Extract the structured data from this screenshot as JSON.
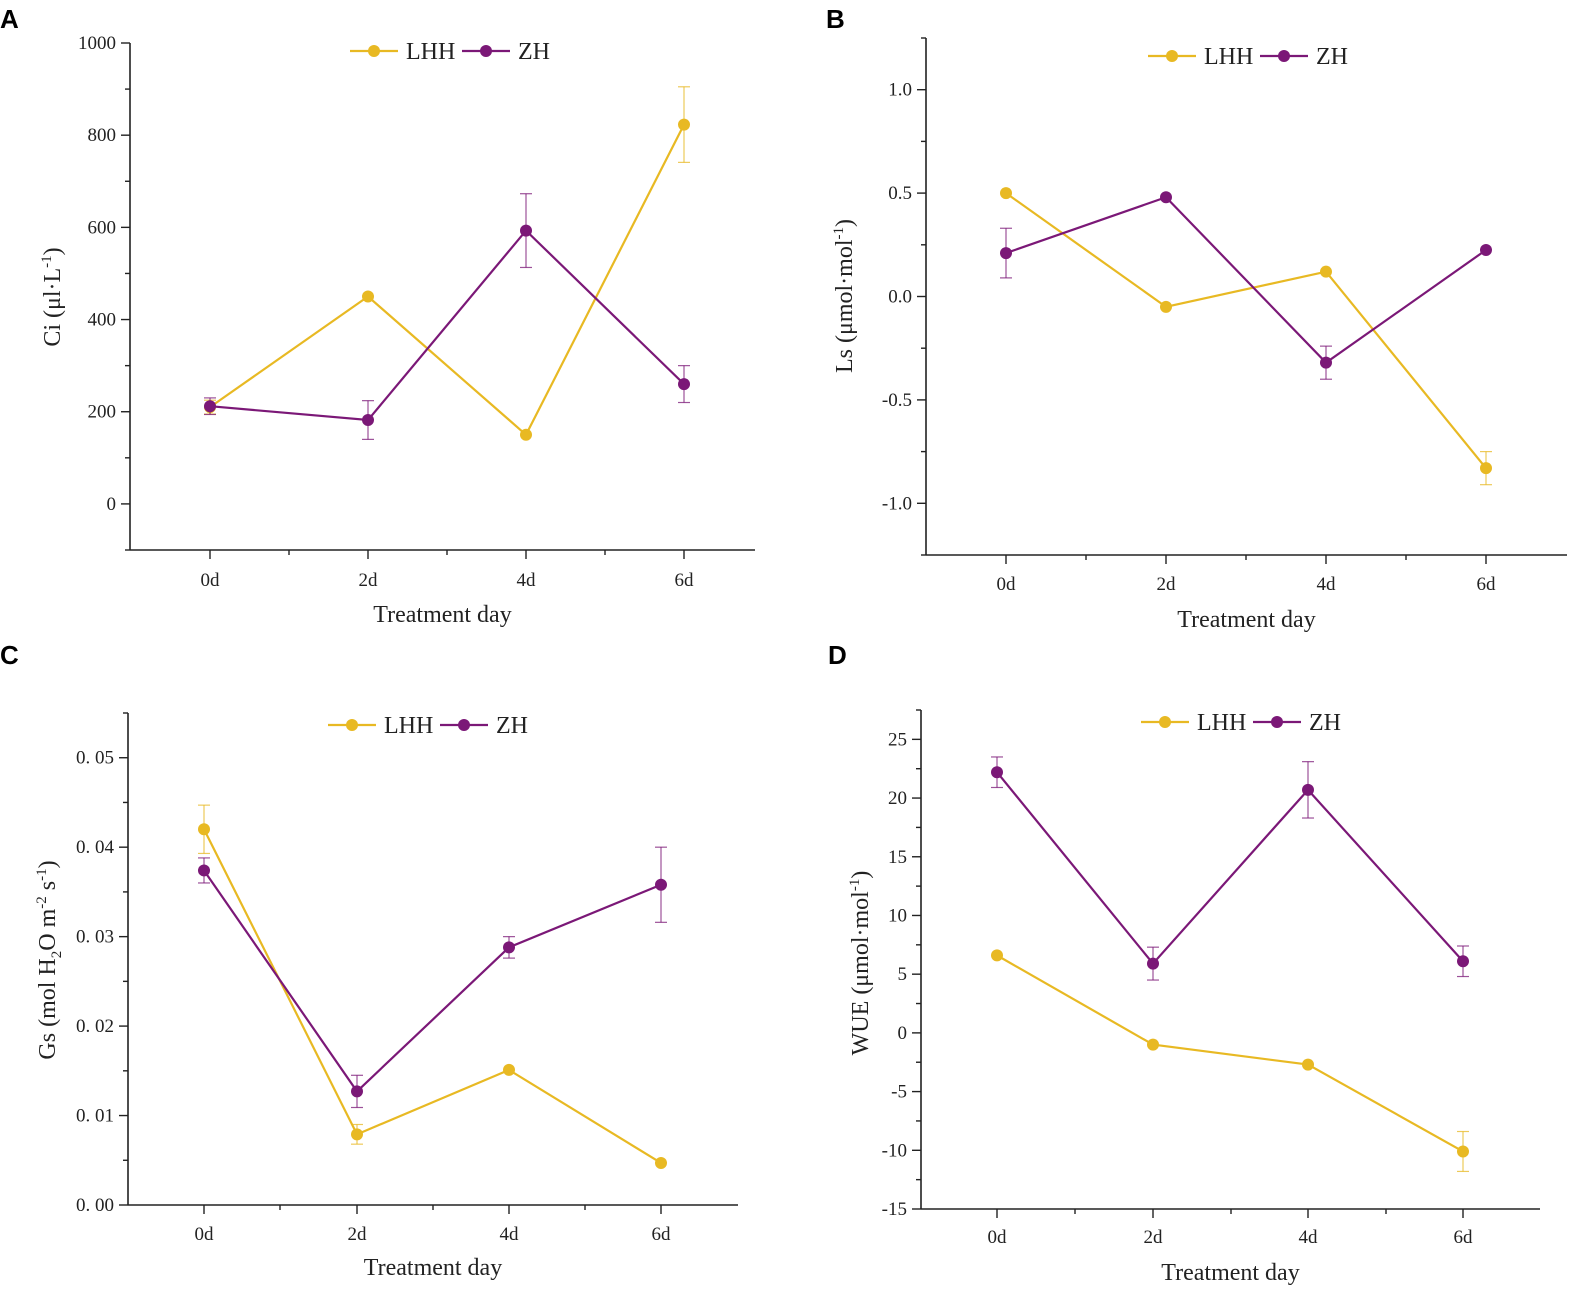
{
  "colors": {
    "LHH": "#E8B923",
    "ZH": "#7B1877"
  },
  "legend": [
    "LHH",
    "ZH"
  ],
  "chart_data": [
    {
      "panel": "A",
      "type": "line",
      "categories": [
        "0d",
        "2d",
        "4d",
        "6d"
      ],
      "xlabel": "Treatment day",
      "ylabel_base": "Ci (μl·L",
      "ylabel_sup": "-1",
      "ylabel_end": ")",
      "ylim": [
        -100,
        1000
      ],
      "yticks": [
        0,
        200,
        400,
        600,
        800,
        1000
      ],
      "ytick_labels": [
        "0",
        "200",
        "400",
        "600",
        "800",
        "1000"
      ],
      "series": [
        {
          "name": "LHH",
          "values": [
            210,
            450,
            150,
            823
          ],
          "errors": [
            15,
            0,
            0,
            82
          ]
        },
        {
          "name": "ZH",
          "values": [
            212,
            182,
            593,
            260
          ],
          "errors": [
            18,
            42,
            80,
            40
          ]
        }
      ]
    },
    {
      "panel": "B",
      "type": "line",
      "categories": [
        "0d",
        "2d",
        "4d",
        "6d"
      ],
      "xlabel": "Treatment day",
      "ylabel_base": "Ls (μmol·mol",
      "ylabel_sup": "-1",
      "ylabel_end": ")",
      "ylim": [
        -1.25,
        1.25
      ],
      "yticks": [
        1.0,
        0.5,
        0.0,
        -0.5,
        -1.0
      ],
      "ytick_labels": [
        "1.0",
        "0.5",
        "0.0",
        "-0.5",
        "-1.0"
      ],
      "series": [
        {
          "name": "LHH",
          "values": [
            0.5,
            -0.05,
            0.12,
            -0.83
          ],
          "errors": [
            0,
            0,
            0,
            0.08
          ]
        },
        {
          "name": "ZH",
          "values": [
            0.21,
            0.48,
            -0.32,
            0.225
          ],
          "errors": [
            0.12,
            0,
            0.08,
            0
          ]
        }
      ]
    },
    {
      "panel": "C",
      "type": "line",
      "categories": [
        "0d",
        "2d",
        "4d",
        "6d"
      ],
      "xlabel": "Treatment day",
      "ylabel_base": "Gs (mol H",
      "ylabel_sub": "2",
      "ylabel_mid": "O m",
      "ylabel_sup1": "-2",
      "ylabel_mid2": " s",
      "ylabel_sup2": "-1",
      "ylabel_end": ")",
      "ylim": [
        0,
        0.055
      ],
      "yticks": [
        0.0,
        0.01,
        0.02,
        0.03,
        0.04,
        0.05
      ],
      "ytick_labels": [
        "0. 00",
        "0. 01",
        "0. 02",
        "0. 03",
        "0. 04",
        "0. 05"
      ],
      "series": [
        {
          "name": "LHH",
          "values": [
            0.042,
            0.0079,
            0.0151,
            0.0047
          ],
          "errors": [
            0.0027,
            0.0011,
            0,
            0
          ]
        },
        {
          "name": "ZH",
          "values": [
            0.0374,
            0.0127,
            0.0288,
            0.0358
          ],
          "errors": [
            0.0014,
            0.0018,
            0.0012,
            0.0042
          ]
        }
      ]
    },
    {
      "panel": "D",
      "type": "line",
      "categories": [
        "0d",
        "2d",
        "4d",
        "6d"
      ],
      "xlabel": "Treatment day",
      "ylabel_base": "WUE (μmol·mol",
      "ylabel_sup": "-1",
      "ylabel_end": ")",
      "ylim": [
        -15,
        27.5
      ],
      "yticks": [
        25,
        20,
        15,
        10,
        5,
        0,
        -5,
        -10,
        -15
      ],
      "ytick_labels": [
        "25",
        "20",
        "15",
        "10",
        "5",
        "0",
        "-5",
        "-10",
        "-15"
      ],
      "series": [
        {
          "name": "LHH",
          "values": [
            6.6,
            -1.0,
            -2.7,
            -10.1
          ],
          "errors": [
            0,
            0,
            0,
            1.7
          ]
        },
        {
          "name": "ZH",
          "values": [
            22.2,
            5.9,
            20.7,
            6.1
          ],
          "errors": [
            1.3,
            1.4,
            2.4,
            1.3
          ]
        }
      ]
    }
  ]
}
